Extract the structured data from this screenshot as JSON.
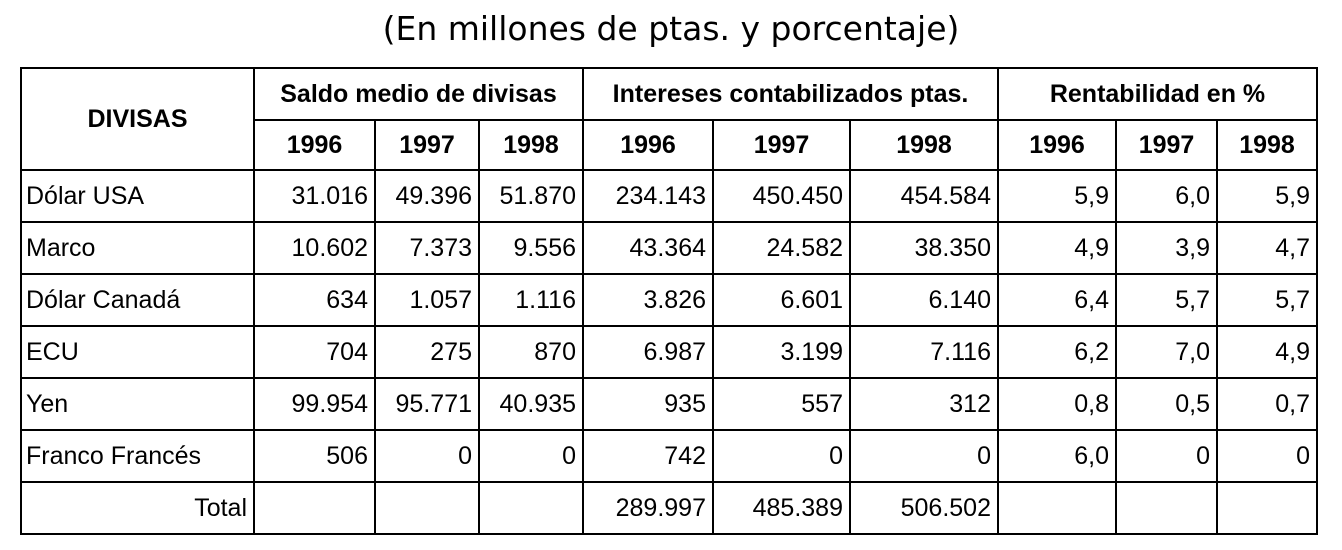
{
  "subtitle": "(En millones de ptas. y porcentaje)",
  "header": {
    "divisas": "DIVISAS",
    "group1": "Saldo medio de divisas",
    "group2": "Intereses contabilizados ptas.",
    "group3": "Rentabilidad en %",
    "years": [
      "1996",
      "1997",
      "1998"
    ]
  },
  "rows": [
    {
      "name": "Dólar USA",
      "values": [
        "31.016",
        "49.396",
        "51.870",
        "234.143",
        "450.450",
        "454.584",
        "5,9",
        "6,0",
        "5,9"
      ]
    },
    {
      "name": "Marco",
      "values": [
        "10.602",
        "7.373",
        "9.556",
        "43.364",
        "24.582",
        "38.350",
        "4,9",
        "3,9",
        "4,7"
      ]
    },
    {
      "name": "Dólar Canadá",
      "values": [
        "634",
        "1.057",
        "1.116",
        "3.826",
        "6.601",
        "6.140",
        "6,4",
        "5,7",
        "5,7"
      ]
    },
    {
      "name": "ECU",
      "values": [
        "704",
        "275",
        "870",
        "6.987",
        "3.199",
        "7.116",
        "6,2",
        "7,0",
        "4,9"
      ]
    },
    {
      "name": "Yen",
      "values": [
        "99.954",
        "95.771",
        "40.935",
        "935",
        "557",
        "312",
        "0,8",
        "0,5",
        "0,7"
      ]
    },
    {
      "name": "Franco Francés",
      "values": [
        "506",
        "0",
        "0",
        "742",
        "0",
        "0",
        "6,0",
        "0",
        "0"
      ]
    }
  ],
  "total": {
    "name": "Total",
    "values": [
      "",
      "",
      "",
      "289.997",
      "485.389",
      "506.502",
      "",
      "",
      ""
    ]
  }
}
